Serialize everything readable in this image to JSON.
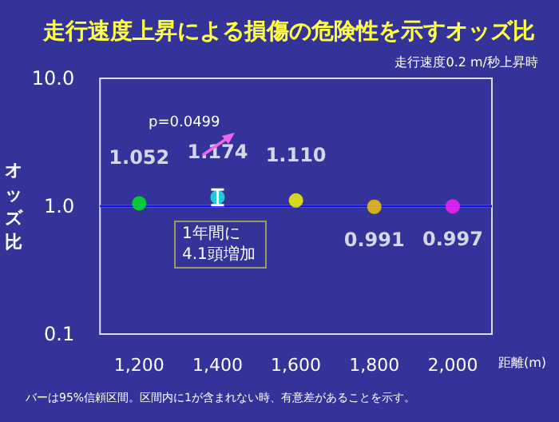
{
  "chart_data": {
    "type": "scatter",
    "title": "走行速度上昇による損傷の危険性を示すオッズ比",
    "subtitle": "走行速度0.2 m/秒上昇時",
    "xlabel": "距離(m)",
    "ylabel": "オッズ比",
    "categories": [
      "1,200",
      "1,400",
      "1,600",
      "1,800",
      "2,000"
    ],
    "values": [
      1.052,
      1.174,
      1.11,
      0.991,
      0.997
    ],
    "colors": [
      "#00ee22",
      "#22eeee",
      "#ffff00",
      "#ffcc00",
      "#ff22ff"
    ],
    "errors": [
      null,
      [
        1.02,
        1.35
      ],
      null,
      null,
      null
    ],
    "value_labels": [
      "1.052",
      "1.174",
      "1.110",
      "0.991",
      "0.997"
    ],
    "log": true,
    "ylim": [
      0.1,
      10
    ],
    "yticks": [
      {
        "value": 0.1,
        "label": "0.1"
      },
      {
        "value": 1,
        "label": "1.0"
      },
      {
        "value": 10,
        "label": "10.0"
      }
    ],
    "marker": "circle",
    "ref_lines": [
      {
        "axis": "y",
        "value": 1,
        "color": "#ddddff"
      },
      {
        "axis": "y",
        "value": 1,
        "color": "#1111ee"
      }
    ],
    "annotations": [
      "p=0.0499",
      "1年間に4.1頭増加",
      "バーは95%信頼区間。区間内に1が含まれない時、有意差があることを示す。"
    ]
  }
}
